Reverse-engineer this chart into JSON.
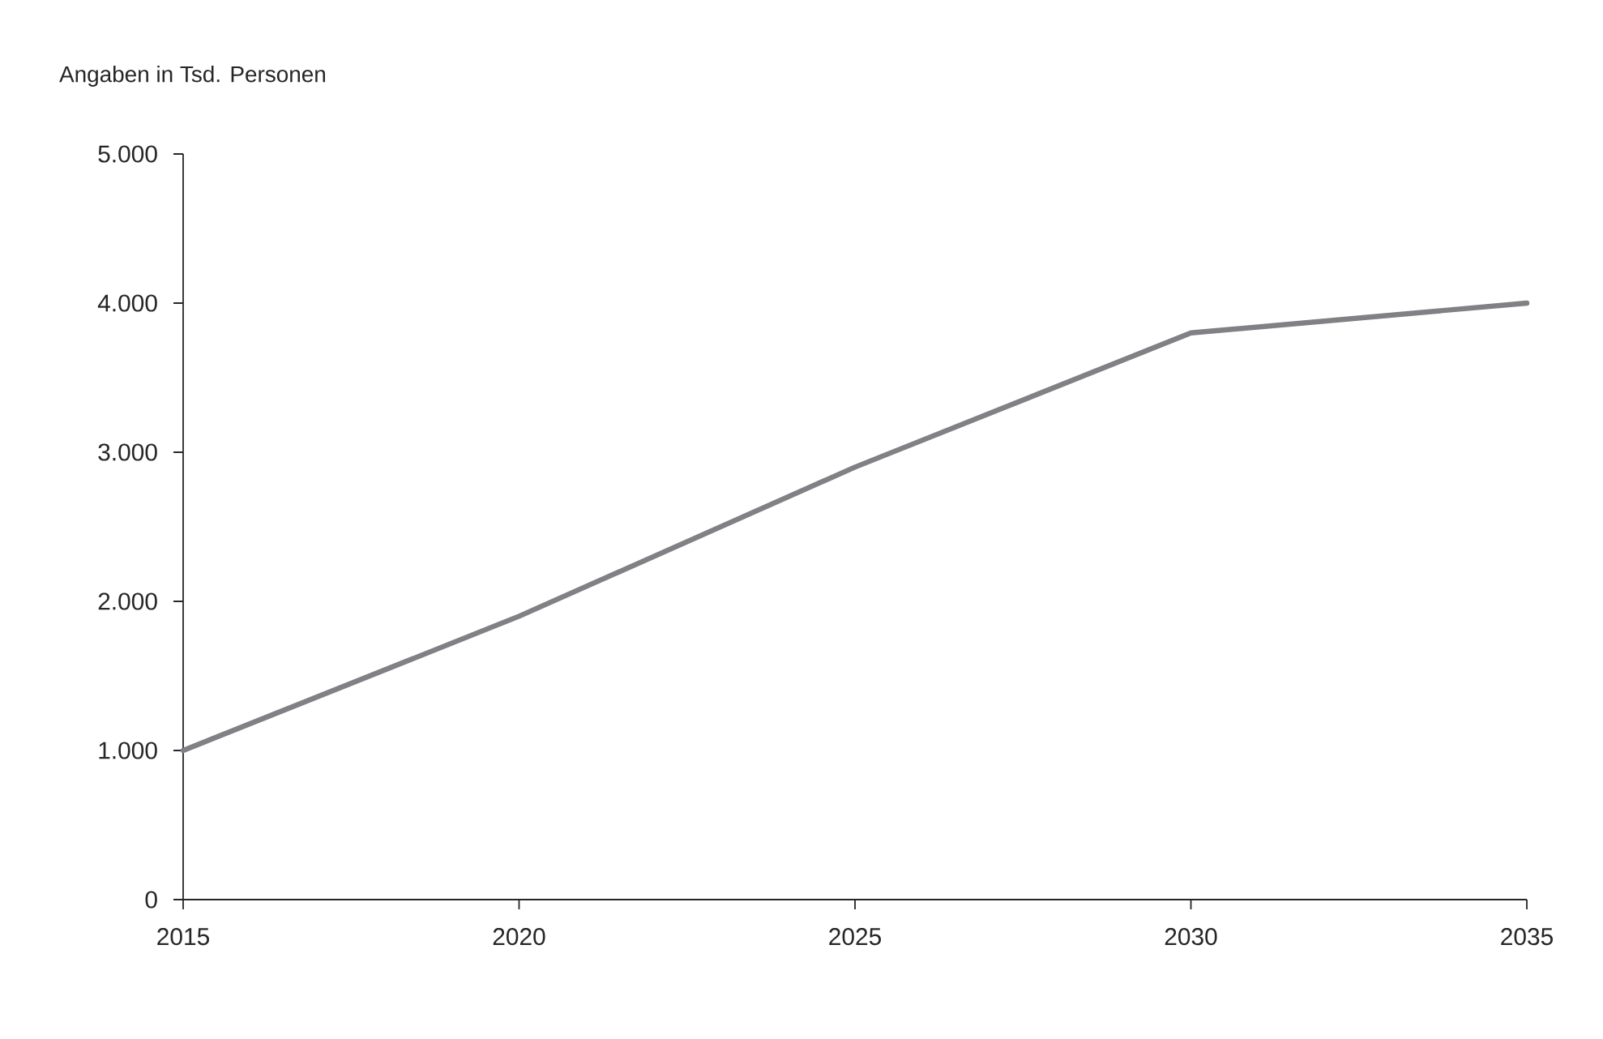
{
  "chart_data": {
    "type": "line",
    "ylabel": "Angaben in Tsd. Personen",
    "x": [
      2015,
      2020,
      2025,
      2030,
      2035
    ],
    "series": [
      {
        "color": "#808085",
        "values": [
          1000,
          1900,
          2900,
          3800,
          4000
        ]
      }
    ],
    "xlim": [
      2015,
      2035
    ],
    "xticks": [
      2015,
      2020,
      2025,
      2030,
      2035
    ],
    "ylim": [
      0,
      5000
    ],
    "yticks": [
      0,
      {
        "value": 1000,
        "label": "1.000"
      },
      {
        "value": 2000,
        "label": "2.000"
      },
      {
        "value": 3000,
        "label": "3.000"
      },
      {
        "value": 4000,
        "label": "4.000"
      },
      {
        "value": 5000,
        "label": "5.000"
      }
    ],
    "grid": false
  }
}
